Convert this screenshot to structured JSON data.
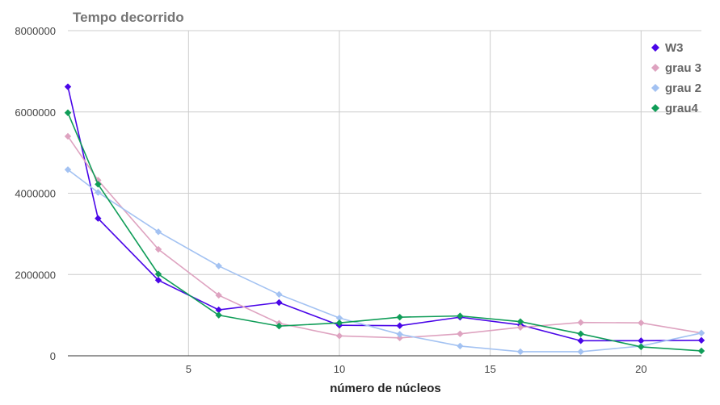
{
  "chart_data": {
    "type": "line",
    "title": "Tempo decorrido",
    "xlabel": "número de núcleos",
    "ylabel": "",
    "xlim": [
      1,
      22
    ],
    "ylim": [
      0,
      8000000
    ],
    "x": [
      1,
      2,
      4,
      6,
      8,
      10,
      12,
      14,
      16,
      18,
      20,
      22
    ],
    "x_ticks": [
      5,
      10,
      15,
      20
    ],
    "y_ticks": [
      0,
      2000000,
      4000000,
      6000000,
      8000000
    ],
    "grid": true,
    "legend_position": "top-right",
    "series": [
      {
        "name": "W3",
        "color": "#4a06e8",
        "values": [
          6620000,
          3380000,
          1860000,
          1130000,
          1310000,
          750000,
          740000,
          950000,
          760000,
          370000,
          370000,
          380000
        ]
      },
      {
        "name": "grau 3",
        "color": "#dea3c0",
        "values": [
          5400000,
          4320000,
          2620000,
          1490000,
          800000,
          490000,
          440000,
          540000,
          700000,
          820000,
          810000,
          560000
        ]
      },
      {
        "name": "grau 2",
        "color": "#a3c2f2",
        "values": [
          4580000,
          4020000,
          3050000,
          2210000,
          1510000,
          930000,
          530000,
          240000,
          100000,
          100000,
          240000,
          560000
        ]
      },
      {
        "name": "grau4",
        "color": "#109d58",
        "values": [
          5980000,
          4220000,
          2010000,
          1000000,
          730000,
          810000,
          950000,
          980000,
          840000,
          540000,
          220000,
          120000
        ]
      }
    ]
  }
}
